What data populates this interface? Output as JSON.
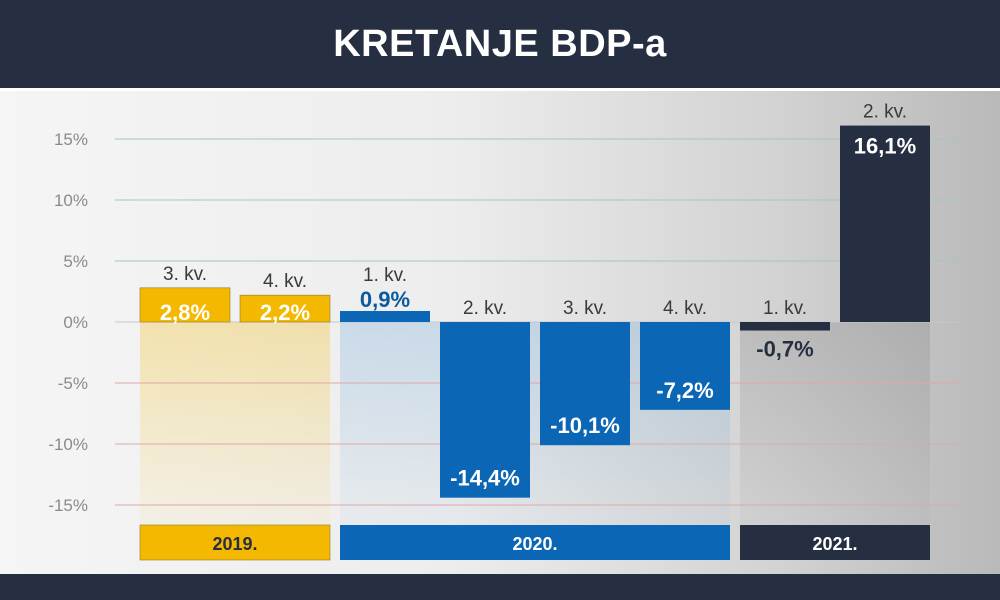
{
  "header": {
    "title": "KRETANJE BDP-a"
  },
  "colors": {
    "year_2019": "#f5b800",
    "year_2020": "#0b66b5",
    "year_2021": "#262f42",
    "label_2019": "#ffffff",
    "label_2020": "#0b5aa0",
    "label_2021": "#262f42",
    "gridline_positive": "#9fc9bb",
    "gridline_negative": "#e0a8a8",
    "tick_text": "#8a8a8a",
    "quarter_text": "#3a3a3a"
  },
  "chart_data": {
    "type": "bar",
    "title": "KRETANJE BDP-a",
    "xlabel": "",
    "ylabel": "",
    "ylim": [
      -15,
      15
    ],
    "yticks": [
      "15%",
      "10%",
      "5%",
      "0%",
      "-5%",
      "-10%",
      "-15%"
    ],
    "grid": true,
    "bars": [
      {
        "quarter": "3. kv.",
        "year": "2019.",
        "value": 2.8,
        "label": "2,8%"
      },
      {
        "quarter": "4. kv.",
        "year": "2019.",
        "value": 2.2,
        "label": "2,2%"
      },
      {
        "quarter": "1. kv.",
        "year": "2020.",
        "value": 0.9,
        "label": "0,9%"
      },
      {
        "quarter": "2. kv.",
        "year": "2020.",
        "value": -14.4,
        "label": "-14,4%"
      },
      {
        "quarter": "3. kv.",
        "year": "2020.",
        "value": -10.1,
        "label": "-10,1%"
      },
      {
        "quarter": "4. kv.",
        "year": "2020.",
        "value": -7.2,
        "label": "-7,2%"
      },
      {
        "quarter": "1. kv.",
        "year": "2021.",
        "value": -0.7,
        "label": "-0,7%"
      },
      {
        "quarter": "2. kv.",
        "year": "2021.",
        "value": 16.1,
        "label": "16,1%"
      }
    ],
    "years": [
      "2019.",
      "2020.",
      "2021."
    ]
  }
}
